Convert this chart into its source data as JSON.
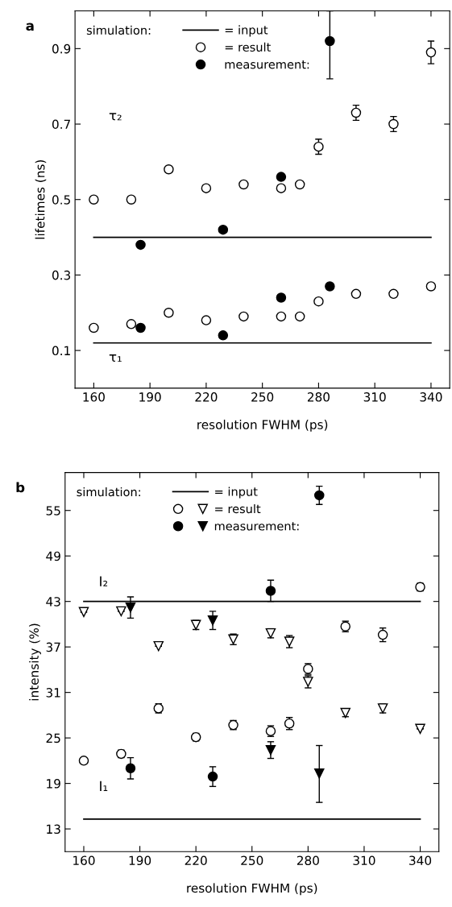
{
  "chart_data": [
    {
      "type": "scatter",
      "title": "a",
      "xlabel": "resolution FWHM (ps)",
      "ylabel": "lifetimes (ns)",
      "xlim": [
        150,
        350
      ],
      "xticks": [
        160,
        190,
        220,
        250,
        280,
        310,
        340
      ],
      "ylim": [
        0,
        1.0
      ],
      "yticks": [
        0.1,
        0.3,
        0.5,
        0.7,
        0.9
      ],
      "grid": false,
      "legend": "top left",
      "series": [
        {
          "type": "line",
          "name": "= input",
          "color": "#000000",
          "marker": "none",
          "x": [
            160,
            340
          ],
          "values": [
            0.4,
            0.4
          ]
        },
        {
          "type": "line",
          "color": "#000000",
          "marker": "none",
          "x": [
            160,
            340
          ],
          "values": [
            0.12,
            0.12
          ]
        },
        {
          "name": "= result",
          "color": "#ffffff",
          "marker": "circle",
          "x": [
            160,
            180,
            200,
            220,
            240,
            260,
            270,
            280,
            300,
            320,
            340
          ],
          "values": [
            0.5,
            0.5,
            0.58,
            0.53,
            0.54,
            0.53,
            0.54,
            0.64,
            0.73,
            0.7,
            0.89
          ],
          "errors": [
            null,
            null,
            null,
            null,
            null,
            null,
            null,
            0.02,
            0.02,
            0.02,
            0.03
          ]
        },
        {
          "color": "#ffffff",
          "marker": "circle",
          "x": [
            160,
            180,
            200,
            220,
            240,
            260,
            270,
            280,
            300,
            320,
            340
          ],
          "values": [
            0.16,
            0.17,
            0.2,
            0.18,
            0.19,
            0.19,
            0.19,
            0.23,
            0.25,
            0.25,
            0.27
          ]
        },
        {
          "name": "measurement:",
          "color": "#000000",
          "marker": "circle",
          "x": [
            185,
            229,
            260,
            286
          ],
          "values": [
            0.38,
            0.42,
            0.56,
            0.92
          ],
          "errors": [
            null,
            null,
            null,
            [
              0.82,
              1.0
            ]
          ]
        },
        {
          "color": "#000000",
          "marker": "circle",
          "x": [
            185,
            229,
            260,
            286
          ],
          "values": [
            0.16,
            0.14,
            0.24,
            0.27
          ]
        }
      ],
      "annotations": [
        "simulation:",
        "τ₂",
        "τ₁"
      ]
    },
    {
      "type": "scatter",
      "title": "b",
      "xlabel": "resolution FWHM (ps)",
      "ylabel": "intensity (%)",
      "xlim": [
        150,
        350
      ],
      "xticks": [
        160,
        190,
        220,
        250,
        280,
        310,
        340
      ],
      "ylim": [
        10,
        60
      ],
      "yticks": [
        13,
        19,
        25,
        31,
        37,
        43,
        49,
        55
      ],
      "grid": false,
      "legend": "top left",
      "series": [
        {
          "type": "line",
          "name": "= input",
          "color": "#000000",
          "marker": "none",
          "x": [
            160,
            340
          ],
          "values": [
            43,
            43
          ]
        },
        {
          "type": "line",
          "color": "#000000",
          "marker": "none",
          "x": [
            160,
            340
          ],
          "values": [
            14.3,
            14.3
          ]
        },
        {
          "color": "#ffffff",
          "marker": "circle",
          "x": [
            160,
            180,
            200,
            220,
            240,
            260,
            270,
            280,
            300,
            320,
            340
          ],
          "values": [
            22.0,
            22.9,
            28.9,
            25.1,
            26.7,
            25.9,
            26.9,
            34.1,
            39.7,
            38.6,
            44.9
          ],
          "errors": [
            null,
            0.5,
            0.6,
            0.5,
            0.6,
            0.7,
            0.8,
            0.7,
            0.7,
            0.9,
            0.5
          ]
        },
        {
          "name": "= result",
          "color": "#ffffff",
          "marker": "triangle",
          "x": [
            160,
            180,
            200,
            220,
            240,
            260,
            270,
            280,
            300,
            320,
            340
          ],
          "values": [
            41.6,
            41.7,
            37.1,
            39.9,
            38.0,
            38.8,
            37.7,
            32.4,
            28.3,
            28.9,
            26.2
          ],
          "errors": [
            null,
            null,
            null,
            0.6,
            0.7,
            0.6,
            0.8,
            0.8,
            0.5,
            0.6,
            null
          ]
        },
        {
          "color": "#000000",
          "marker": "circle",
          "x": [
            185,
            229,
            260,
            286
          ],
          "values": [
            21.0,
            19.9,
            44.4,
            57.0
          ],
          "errors": [
            1.4,
            1.3,
            1.4,
            1.2
          ]
        },
        {
          "name": "measurement:",
          "color": "#000000",
          "marker": "triangle",
          "x": [
            185,
            229,
            260,
            286
          ],
          "values": [
            42.2,
            40.5,
            23.4,
            20.3
          ],
          "errors": [
            1.4,
            1.2,
            1.1,
            [
              16.5,
              24.0
            ]
          ]
        }
      ],
      "annotations": [
        "simulation:",
        "I₂",
        "I₁"
      ]
    }
  ]
}
